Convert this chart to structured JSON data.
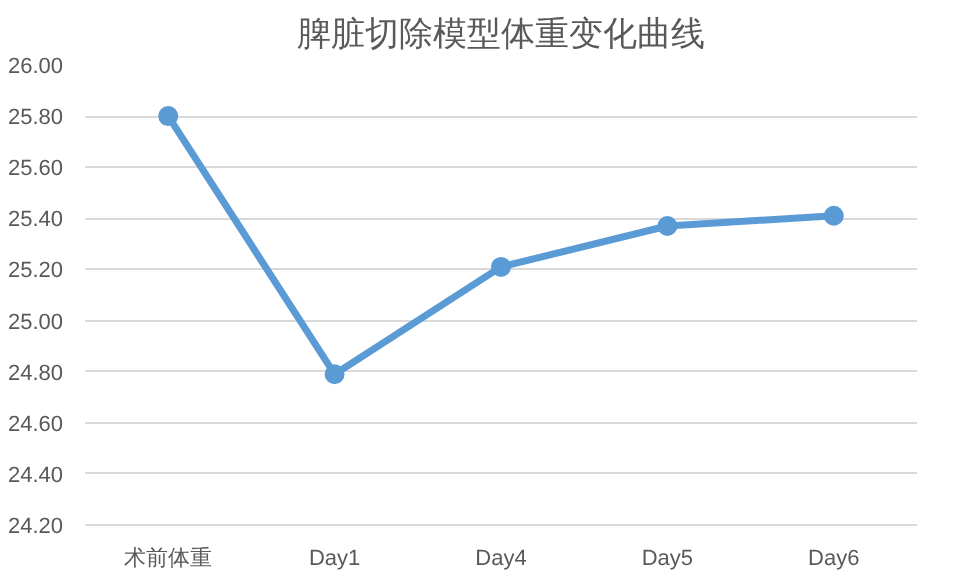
{
  "chart_data": {
    "type": "line",
    "title": "脾脏切除模型体重变化曲线",
    "categories": [
      "术前体重",
      "Day1",
      "Day4",
      "Day5",
      "Day6"
    ],
    "series": [
      {
        "color": "#5b9bd5",
        "values": [
          25.8,
          24.79,
          25.21,
          25.37,
          25.41
        ]
      }
    ],
    "ylim": [
      24.2,
      26.0
    ],
    "yticks": [
      {
        "value": 24.2,
        "label": "24.20"
      },
      {
        "value": 24.4,
        "label": "24.40"
      },
      {
        "value": 24.6,
        "label": "24.60"
      },
      {
        "value": 24.8,
        "label": "24.80"
      },
      {
        "value": 25.0,
        "label": "25.00"
      },
      {
        "value": 25.2,
        "label": "25.20"
      },
      {
        "value": 25.4,
        "label": "25.40"
      },
      {
        "value": 25.6,
        "label": "25.60"
      },
      {
        "value": 25.8,
        "label": "25.80"
      },
      {
        "value": 26.0,
        "label": "26.00"
      }
    ],
    "grid": "y",
    "marker": "circle"
  }
}
